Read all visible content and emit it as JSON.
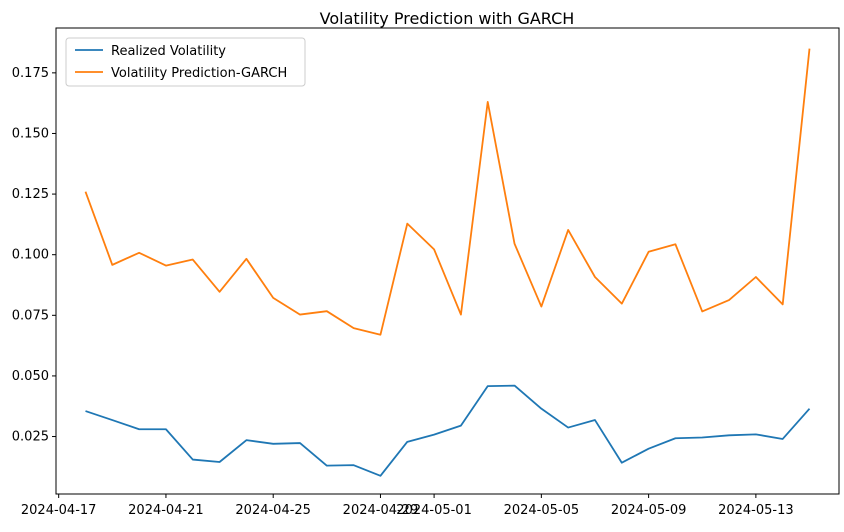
{
  "chart_data": {
    "type": "line",
    "title": "Volatility Prediction with GARCH",
    "xlabel": "",
    "ylabel": "",
    "x": [
      "2024-04-18",
      "2024-04-19",
      "2024-04-20",
      "2024-04-21",
      "2024-04-22",
      "2024-04-23",
      "2024-04-24",
      "2024-04-25",
      "2024-04-26",
      "2024-04-27",
      "2024-04-28",
      "2024-04-29",
      "2024-04-30",
      "2024-05-01",
      "2024-05-02",
      "2024-05-03",
      "2024-05-04",
      "2024-05-05",
      "2024-05-06",
      "2024-05-07",
      "2024-05-08",
      "2024-05-09",
      "2024-05-10",
      "2024-05-11",
      "2024-05-12",
      "2024-05-13",
      "2024-05-14",
      "2024-05-15"
    ],
    "xlim": [
      "2024-04-16.9",
      "2024-05-16.1"
    ],
    "ylim": [
      0.0013,
      0.1935
    ],
    "x_ticks": [
      "2024-04-17",
      "2024-04-21",
      "2024-04-25",
      "2024-04-29",
      "2024-05-01",
      "2024-05-05",
      "2024-05-09",
      "2024-05-13"
    ],
    "y_ticks": [
      "0.025",
      "0.050",
      "0.075",
      "0.100",
      "0.125",
      "0.150",
      "0.175"
    ],
    "legend_position": "top-left",
    "grid": false,
    "series": [
      {
        "name": "Realized Volatility",
        "color": "#1f77b4",
        "values": [
          0.0355,
          0.0318,
          0.028,
          0.028,
          0.0155,
          0.0145,
          0.0235,
          0.022,
          0.0223,
          0.013,
          0.0132,
          0.0088,
          0.0228,
          0.0258,
          0.0295,
          0.0458,
          0.046,
          0.0365,
          0.0287,
          0.0318,
          0.0142,
          0.02,
          0.0243,
          0.0246,
          0.0255,
          0.0259,
          0.024,
          0.0365
        ]
      },
      {
        "name": "Volatility Prediction-GARCH",
        "color": "#ff7f0e",
        "values": [
          0.126,
          0.0958,
          0.1008,
          0.0955,
          0.098,
          0.0847,
          0.0983,
          0.0822,
          0.0753,
          0.0767,
          0.0697,
          0.067,
          0.1128,
          0.1022,
          0.0753,
          0.163,
          0.1045,
          0.0786,
          0.1102,
          0.0908,
          0.0798,
          0.1012,
          0.1043,
          0.0766,
          0.0813,
          0.0908,
          0.0795,
          0.185
        ]
      }
    ]
  }
}
